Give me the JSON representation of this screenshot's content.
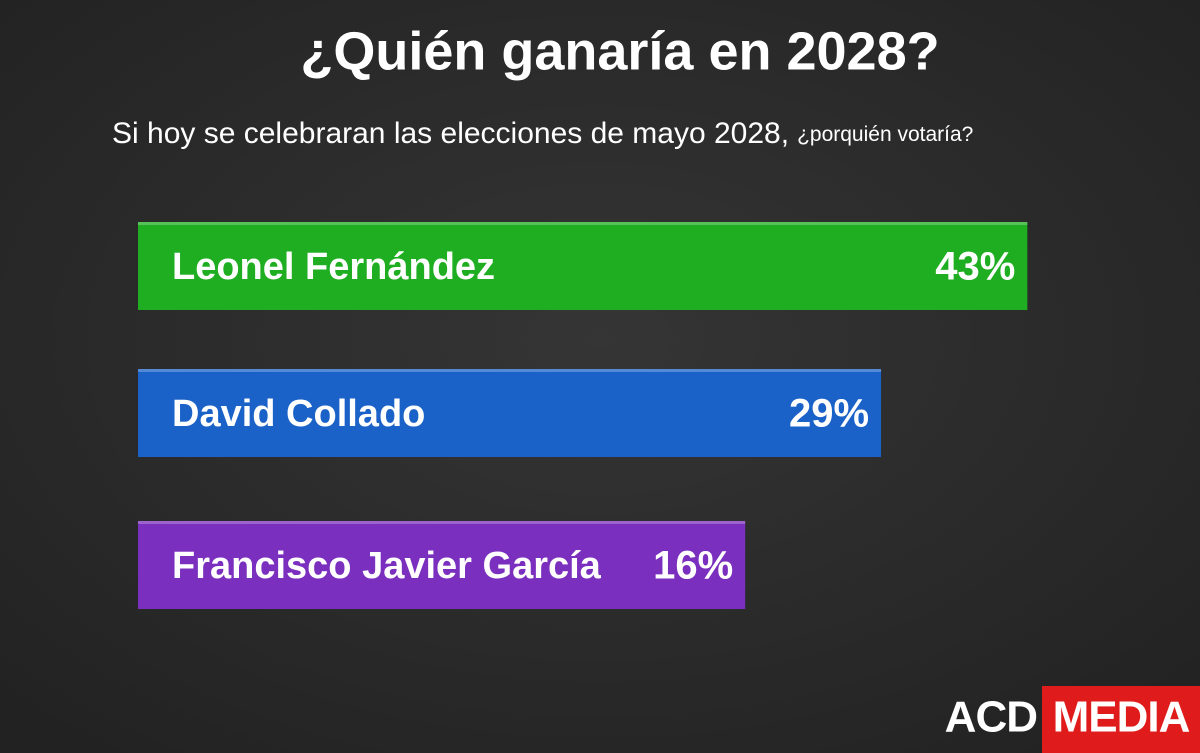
{
  "chart_data": {
    "type": "bar",
    "title": "¿Quién ganaría en 2028?",
    "subtitle": "Si hoy se celebraran las elecciones de mayo 2028,",
    "subtitle_question": "¿porquién votaría?",
    "categories": [
      "Leonel Fernández",
      "David Collado",
      "Francisco Javier García"
    ],
    "values": [
      43,
      29,
      16
    ],
    "value_labels": [
      "43%",
      "29%",
      "16%"
    ],
    "colors": [
      "#1fae21",
      "#1b62c8",
      "#7b2fbe"
    ]
  },
  "logo": {
    "left": "ACD",
    "right": "MEDIA"
  }
}
